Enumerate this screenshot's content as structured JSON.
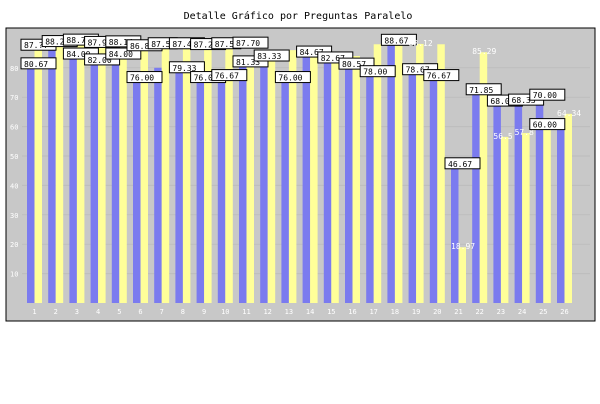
{
  "chart_data": {
    "type": "bar",
    "title": "Detalle Gráfico por Preguntas Paralelo",
    "xlabel": "",
    "ylabel": "",
    "ylim": [
      0,
      100
    ],
    "yticks": [
      10,
      20,
      30,
      40,
      50,
      60,
      70,
      80
    ],
    "grid": true,
    "categories": [
      "1",
      "2",
      "3",
      "4",
      "5",
      "6",
      "7",
      "8",
      "9",
      "10",
      "11",
      "12",
      "13",
      "14",
      "15",
      "16",
      "17",
      "18",
      "19",
      "20",
      "21",
      "22",
      "23",
      "24",
      "25",
      "26"
    ],
    "series": [
      {
        "color": "#7b7bef",
        "values": [
          80.67,
          88.24,
          84.0,
          82.0,
          84.0,
          76.0,
          80.0,
          79.33,
          76.0,
          76.67,
          81.33,
          83.33,
          76.0,
          84.67,
          82.67,
          80.57,
          78.0,
          88.67,
          78.67,
          76.67,
          46.67,
          71.85,
          68.0,
          68.33,
          70.0,
          60.0
        ]
      },
      {
        "color": "#ffff99",
        "values": [
          87.0,
          88.73,
          87.95,
          88.14,
          86.81,
          87.5,
          87.49,
          87.22,
          87.5,
          87.7,
          84.0,
          86.0,
          86.0,
          86.0,
          85.0,
          84.0,
          88.0,
          88.67,
          88.12,
          88.0,
          18.97,
          85.29,
          56.5,
          57.8,
          59.0,
          64.34
        ]
      }
    ],
    "data_labels": [
      {
        "category": "1",
        "text": "80.67",
        "value": 80.67,
        "boxed": true
      },
      {
        "category": "1",
        "text": "87.??",
        "value": 87.0,
        "boxed": true
      },
      {
        "category": "2",
        "text": "88.24",
        "value": 88.24,
        "boxed": true
      },
      {
        "category": "3",
        "text": "88.73",
        "value": 88.73,
        "boxed": true
      },
      {
        "category": "3",
        "text": "84.00",
        "value": 84.0,
        "boxed": true
      },
      {
        "category": "4",
        "text": "87.95",
        "value": 87.95,
        "boxed": true
      },
      {
        "category": "4",
        "text": "82.00",
        "value": 82.0,
        "boxed": true
      },
      {
        "category": "5",
        "text": "88.14",
        "value": 88.14,
        "boxed": true
      },
      {
        "category": "5",
        "text": "84.00",
        "value": 84.0,
        "boxed": true
      },
      {
        "category": "6",
        "text": "86.81",
        "value": 86.81,
        "boxed": true
      },
      {
        "category": "6",
        "text": "76.00",
        "value": 76.0,
        "boxed": true
      },
      {
        "category": "7",
        "text": "87.5",
        "value": 87.5,
        "boxed": true
      },
      {
        "category": "8",
        "text": "87.49",
        "value": 87.49,
        "boxed": true
      },
      {
        "category": "8",
        "text": "79.33",
        "value": 79.33,
        "boxed": true
      },
      {
        "category": "9",
        "text": "87.22",
        "value": 87.22,
        "boxed": true
      },
      {
        "category": "9",
        "text": "76.00",
        "value": 76.0,
        "boxed": true
      },
      {
        "category": "10",
        "text": "87.5",
        "value": 87.5,
        "boxed": true
      },
      {
        "category": "10",
        "text": "76.67",
        "value": 76.67,
        "boxed": true
      },
      {
        "category": "11",
        "text": "87.70",
        "value": 87.7,
        "boxed": true
      },
      {
        "category": "11",
        "text": "81.33",
        "value": 81.33,
        "boxed": true
      },
      {
        "category": "12",
        "text": "83.33",
        "value": 83.33,
        "boxed": true
      },
      {
        "category": "13",
        "text": "76.00",
        "value": 76.0,
        "boxed": true
      },
      {
        "category": "14",
        "text": "84.67",
        "value": 84.67,
        "boxed": true
      },
      {
        "category": "15",
        "text": "82.67",
        "value": 82.67,
        "boxed": true
      },
      {
        "category": "16",
        "text": "80.57",
        "value": 80.57,
        "boxed": true
      },
      {
        "category": "17",
        "text": "78.00",
        "value": 78.0,
        "boxed": true
      },
      {
        "category": "18",
        "text": "88.67",
        "value": 88.67,
        "boxed": true
      },
      {
        "category": "19",
        "text": "78.67",
        "value": 78.67,
        "boxed": true
      },
      {
        "category": "19",
        "text": "88.12",
        "value": 88.12,
        "boxed": false
      },
      {
        "category": "20",
        "text": "76.67",
        "value": 76.67,
        "boxed": true
      },
      {
        "category": "21",
        "text": "46.67",
        "value": 46.67,
        "boxed": true
      },
      {
        "category": "21",
        "text": "18.97",
        "value": 18.97,
        "boxed": false
      },
      {
        "category": "22",
        "text": "71.85",
        "value": 71.85,
        "boxed": true
      },
      {
        "category": "22",
        "text": "85.29",
        "value": 85.29,
        "boxed": false
      },
      {
        "category": "23",
        "text": "68.00",
        "value": 68.0,
        "boxed": true
      },
      {
        "category": "23",
        "text": "56.5",
        "value": 56.5,
        "boxed": false
      },
      {
        "category": "24",
        "text": "68.33",
        "value": 68.33,
        "boxed": true
      },
      {
        "category": "24",
        "text": "57.8",
        "value": 57.8,
        "boxed": false
      },
      {
        "category": "25",
        "text": "70.00",
        "value": 70.0,
        "boxed": true
      },
      {
        "category": "25",
        "text": "60.00",
        "value": 60.0,
        "boxed": true
      },
      {
        "category": "26",
        "text": "64.34",
        "value": 64.34,
        "boxed": false
      }
    ]
  }
}
